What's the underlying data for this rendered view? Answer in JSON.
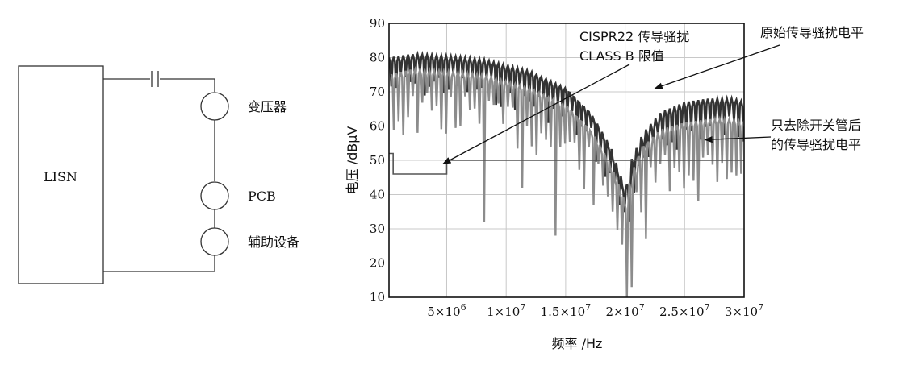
{
  "circuit": {
    "lisn_label": "LISN",
    "component_labels": [
      "变压器",
      "PCB",
      "辅助设备"
    ]
  },
  "chart_data": {
    "type": "line",
    "title": "",
    "xlabel": "频率 /Hz",
    "ylabel": "电压 /dBμV",
    "xlim": [
      150000,
      30000000
    ],
    "ylim": [
      10,
      90
    ],
    "grid": true,
    "y_ticks": [
      "10",
      "20",
      "30",
      "40",
      "50",
      "60",
      "70",
      "80",
      "90"
    ],
    "x_tick_labels": [
      {
        "value": 5000000,
        "mantissa": "5",
        "exp": "6"
      },
      {
        "value": 10000000,
        "mantissa": "1",
        "exp": "7"
      },
      {
        "value": 15000000,
        "mantissa": "1.5",
        "exp": "7"
      },
      {
        "value": 20000000,
        "mantissa": "2",
        "exp": "7"
      },
      {
        "value": 25000000,
        "mantissa": "2.5",
        "exp": "7"
      },
      {
        "value": 30000000,
        "mantissa": "3",
        "exp": "7"
      }
    ],
    "times_sign": "×",
    "series": [
      {
        "id": "limit",
        "color": "#555555",
        "x": [
          150000,
          500000,
          500000,
          5000000,
          5000000,
          30000000
        ],
        "y": [
          52,
          52,
          46,
          46,
          50,
          50
        ]
      },
      {
        "id": "original",
        "color": "#333333",
        "envelope_x": [
          150000,
          2000000,
          5000000,
          8000000,
          12000000,
          15000000,
          17000000,
          18500000,
          19500000,
          20000000,
          20500000,
          21500000,
          23000000,
          25000000,
          27000000,
          29000000,
          30000000
        ],
        "envelope_y": [
          80,
          81,
          80.5,
          79.5,
          76,
          71,
          64,
          55,
          45,
          40,
          50,
          58,
          64,
          67,
          68,
          68,
          67
        ]
      },
      {
        "id": "switch_removed",
        "color": "#8c8c8c",
        "envelope_x": [
          150000,
          2000000,
          5000000,
          8000000,
          12000000,
          15000000,
          17000000,
          18500000,
          19500000,
          20000000,
          20500000,
          21500000,
          23000000,
          25000000,
          27000000,
          29000000,
          30000000
        ],
        "envelope_y": [
          75,
          76.5,
          76,
          75,
          71,
          66,
          59,
          50,
          41,
          37,
          46,
          54,
          59,
          61,
          62,
          62,
          61
        ],
        "deep_dips": [
          {
            "x": 8100000,
            "y": 32
          },
          {
            "x": 11200000,
            "y": 42
          },
          {
            "x": 13900000,
            "y": 28
          },
          {
            "x": 17200000,
            "y": 37
          },
          {
            "x": 18800000,
            "y": 35
          },
          {
            "x": 19950000,
            "y": 10
          },
          {
            "x": 20300000,
            "y": 13
          },
          {
            "x": 21600000,
            "y": 27
          },
          {
            "x": 23500000,
            "y": 41
          },
          {
            "x": 26000000,
            "y": 38
          }
        ]
      }
    ],
    "annotations": [
      {
        "id": "limit",
        "lines": [
          "CISPR22 传导骚扰",
          "CLASS B 限值"
        ],
        "target": {
          "x": 4700000,
          "y": 49
        }
      },
      {
        "id": "original",
        "lines": [
          "原始传导骚扰电平"
        ],
        "target": {
          "x": 22500000,
          "y": 71
        }
      },
      {
        "id": "switch_removed",
        "lines": [
          "只去除开关管后",
          "的传导骚扰电平"
        ],
        "target": {
          "x": 26700000,
          "y": 56
        }
      }
    ]
  }
}
